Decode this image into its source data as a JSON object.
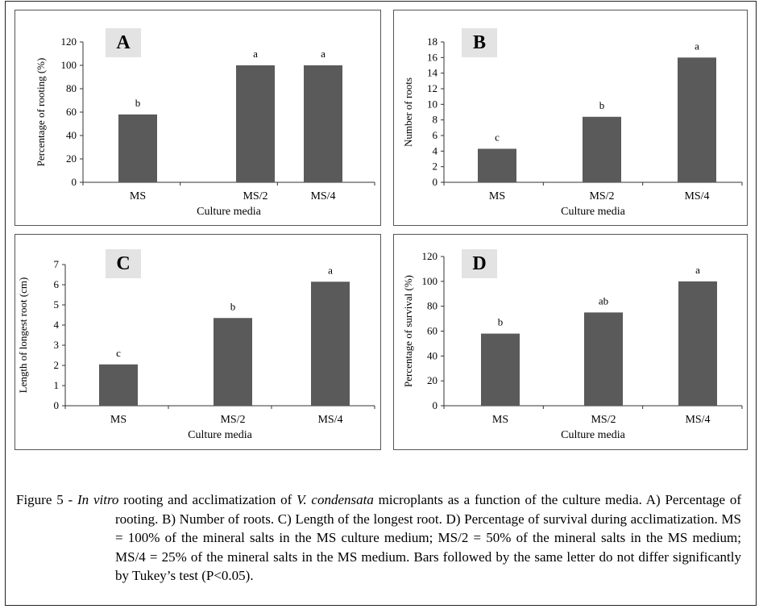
{
  "chart_data": [
    {
      "type": "bar",
      "panel_label": "A",
      "categories": [
        "MS",
        "MS/2",
        "MS/4"
      ],
      "values": [
        58,
        100,
        100
      ],
      "letters": [
        "b",
        "a",
        "a"
      ],
      "xlabel": "Culture media",
      "ylabel": "Percentage of rooting (%)",
      "ylim": [
        0,
        120
      ],
      "yticks": [
        0,
        20,
        40,
        60,
        80,
        100,
        120
      ],
      "bar_color": "#5a5a5a"
    },
    {
      "type": "bar",
      "panel_label": "B",
      "categories": [
        "MS",
        "MS/2",
        "MS/4"
      ],
      "values": [
        4.3,
        8.4,
        16
      ],
      "letters": [
        "c",
        "b",
        "a"
      ],
      "xlabel": "Culture media",
      "ylabel": "Number of roots",
      "ylim": [
        0,
        18
      ],
      "yticks": [
        0,
        2,
        4,
        6,
        8,
        10,
        12,
        14,
        16,
        18
      ],
      "bar_color": "#5a5a5a"
    },
    {
      "type": "bar",
      "panel_label": "C",
      "categories": [
        "MS",
        "MS/2",
        "MS/4"
      ],
      "values": [
        2.05,
        4.35,
        6.15
      ],
      "letters": [
        "c",
        "b",
        "a"
      ],
      "xlabel": "Culture media",
      "ylabel": "Length of longest root (cm)",
      "ylim": [
        0,
        7
      ],
      "yticks": [
        0,
        1,
        2,
        3,
        4,
        5,
        6,
        7
      ],
      "bar_color": "#5a5a5a"
    },
    {
      "type": "bar",
      "panel_label": "D",
      "categories": [
        "MS",
        "MS/2",
        "MS/4"
      ],
      "values": [
        58,
        75,
        100
      ],
      "letters": [
        "b",
        "ab",
        "a"
      ],
      "xlabel": "Culture media",
      "ylabel": "Percentage of survival (%)",
      "ylim": [
        0,
        120
      ],
      "yticks": [
        0,
        20,
        40,
        60,
        80,
        100,
        120
      ],
      "bar_color": "#5a5a5a"
    }
  ],
  "caption": {
    "prefix": "Figure 5 - ",
    "italic1": "In vitro",
    "text1": " rooting and acclimatization of ",
    "italic2": "V. condensata",
    "text2": " microplants as a function of the culture media. A) Percentage of rooting. B) Number of roots. C) Length of the longest root. D) Percentage of survival during acclimatization. MS = 100% of the mineral salts in the MS culture medium; MS/2 = 50% of the mineral salts in the MS medium; MS/4 = 25% of the mineral salts in the MS medium. Bars followed by the same letter do not differ significantly by Tukey’s test (P<0.05)."
  }
}
